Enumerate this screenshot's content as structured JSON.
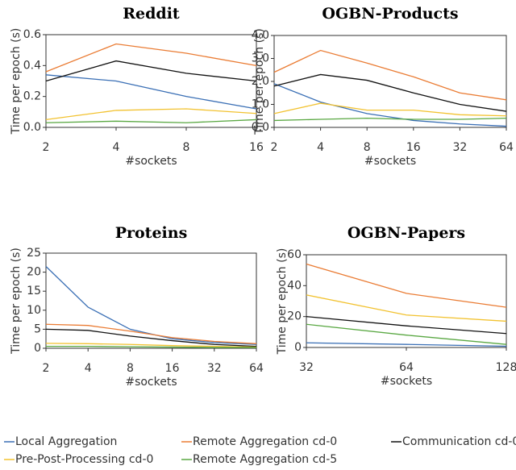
{
  "legend": [
    {
      "name": "Local Aggregation",
      "color": "#3a6fb5"
    },
    {
      "name": "Remote Aggregation cd-0",
      "color": "#ea7c34"
    },
    {
      "name": "Communication cd-0",
      "color": "#111111"
    },
    {
      "name": "Pre-Post-Processing cd-0",
      "color": "#f2c230"
    },
    {
      "name": "Remote Aggregation cd-5",
      "color": "#5aa843"
    }
  ],
  "chart_data": [
    {
      "type": "line",
      "title": "Reddit",
      "xlabel": "#sockets",
      "ylabel": "Time per epoch (s)",
      "categories": [
        "2",
        "4",
        "8",
        "16"
      ],
      "ylim": [
        0,
        0.6
      ],
      "yticks": [
        {
          "value": 0,
          "label": "0.0"
        },
        0.2,
        0.4,
        0.6
      ],
      "series": [
        {
          "values": [
            0.34,
            0.3,
            0.2,
            0.12
          ]
        },
        {
          "values": [
            0.36,
            0.54,
            0.48,
            0.4
          ]
        },
        {
          "values": [
            0.3,
            0.43,
            0.35,
            0.3
          ]
        },
        {
          "values": [
            0.05,
            0.11,
            0.12,
            0.09
          ]
        },
        {
          "values": [
            0.03,
            0.04,
            0.03,
            0.05
          ]
        }
      ]
    },
    {
      "type": "line",
      "title": "OGBN-Products",
      "xlabel": "#sockets",
      "ylabel": "Time per epoch (s)",
      "categories": [
        "2",
        "4",
        "8",
        "16",
        "32",
        "64"
      ],
      "ylim": [
        0,
        4
      ],
      "yticks": [
        {
          "value": 0,
          "label": "0.0"
        },
        {
          "value": 1,
          "label": "1.0"
        },
        {
          "value": 2,
          "label": "2.0"
        },
        {
          "value": 3,
          "label": "3.0"
        },
        {
          "value": 4,
          "label": "4.0"
        }
      ],
      "series": [
        {
          "values": [
            1.9,
            1.1,
            0.6,
            0.3,
            0.15,
            0.05
          ]
        },
        {
          "values": [
            2.4,
            3.35,
            2.8,
            2.2,
            1.5,
            1.2
          ]
        },
        {
          "values": [
            1.8,
            2.3,
            2.05,
            1.5,
            1.0,
            0.7
          ]
        },
        {
          "values": [
            0.6,
            1.05,
            0.75,
            0.75,
            0.55,
            0.5
          ]
        },
        {
          "values": [
            0.3,
            0.35,
            0.4,
            0.35,
            0.35,
            0.4
          ]
        }
      ]
    },
    {
      "type": "line",
      "title": "Proteins",
      "xlabel": "#sockets",
      "ylabel": "Time per epoch (s)",
      "categories": [
        "2",
        "4",
        "8",
        "16",
        "32",
        "64"
      ],
      "ylim": [
        0,
        25
      ],
      "yticks": [
        0,
        5,
        10,
        15,
        20,
        25
      ],
      "series": [
        {
          "values": [
            21.5,
            10.8,
            5,
            2.5,
            1.5,
            1
          ]
        },
        {
          "values": [
            6.3,
            6,
            4.5,
            2.8,
            1.8,
            1.2
          ]
        },
        {
          "values": [
            5,
            4.7,
            3.2,
            2,
            1,
            0.5
          ]
        },
        {
          "values": [
            1.3,
            1.2,
            1,
            0.7,
            0.5,
            0.3
          ]
        },
        {
          "values": [
            0.5,
            0.5,
            0.4,
            0.3,
            0.2,
            0.2
          ]
        }
      ]
    },
    {
      "type": "line",
      "title": "OGBN-Papers",
      "xlabel": "#sockets",
      "ylabel": "Time per epoch (s)",
      "categories": [
        "32",
        "64",
        "128"
      ],
      "ylim": [
        0,
        60
      ],
      "yticks": [
        0,
        20,
        40,
        60
      ],
      "series": [
        {
          "values": [
            3,
            2,
            0.8
          ]
        },
        {
          "values": [
            54,
            35,
            26
          ]
        },
        {
          "values": [
            20,
            14,
            9
          ]
        },
        {
          "values": [
            34,
            21,
            17
          ]
        },
        {
          "values": [
            15,
            8,
            2
          ]
        }
      ]
    }
  ]
}
